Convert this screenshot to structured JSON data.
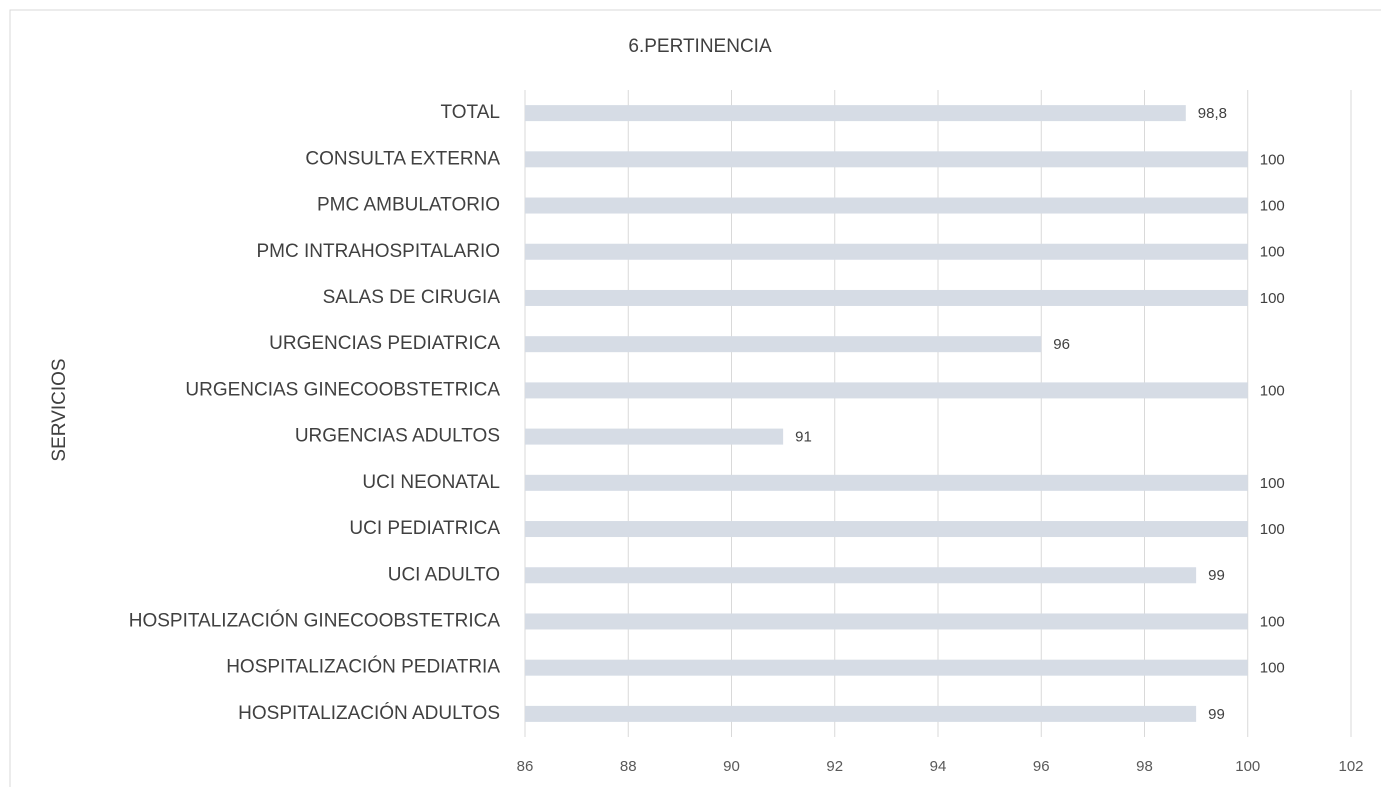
{
  "chart_data": {
    "type": "bar",
    "orientation": "horizontal",
    "title": "6.PERTINENCIA",
    "y_label": "SERVICIOS",
    "categories": [
      "TOTAL",
      "CONSULTA EXTERNA",
      "PMC AMBULATORIO",
      "PMC INTRAHOSPITALARIO",
      "SALAS DE CIRUGIA",
      "URGENCIAS PEDIATRICA",
      "URGENCIAS GINECOOBSTETRICA",
      "URGENCIAS ADULTOS",
      "UCI NEONATAL",
      "UCI PEDIATRICA",
      "UCI ADULTO",
      "HOSPITALIZACIÓN GINECOOBSTETRICA",
      "HOSPITALIZACIÓN PEDIATRIA",
      "HOSPITALIZACIÓN ADULTOS"
    ],
    "values": [
      98.8,
      100,
      100,
      100,
      100,
      96,
      100,
      91,
      100,
      100,
      99,
      100,
      100,
      99
    ],
    "value_labels": [
      "98,8",
      "100",
      "100",
      "100",
      "100",
      "96",
      "100",
      "91",
      "100",
      "100",
      "99",
      "100",
      "100",
      "99"
    ],
    "color": "#d6dce5",
    "xlim": [
      86,
      102
    ],
    "xticks": [
      86,
      88,
      90,
      92,
      94,
      96,
      98,
      100,
      102
    ],
    "grid": true
  }
}
